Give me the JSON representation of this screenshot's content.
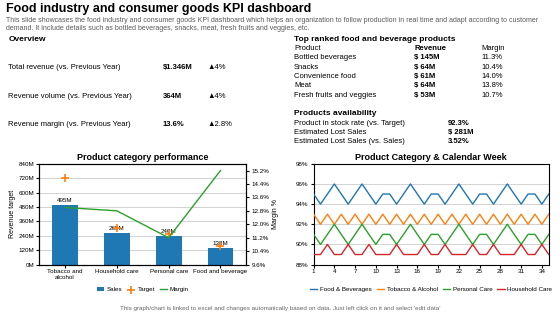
{
  "title": "Food industry and consumer goods KPI dashboard",
  "subtitle": "This slide showcases the food industry and consumer goods KPI dashboard which helps an organization to follow production in real time and adapt according to customer demand. It include details such as bottled beverages, snacks, meat, fresh fruits and veggies, etc.",
  "annotations": [
    [
      [
        "Overview"
      ],
      [
        "Total revenue (vs. Previous Year)",
        "$1.346M",
        "▲4%"
      ],
      [
        "Revenue volume (vs. Previous Year)",
        "364M",
        "▲4%"
      ],
      [
        "Revenue margin (vs. Previous Year)",
        "13.6%",
        "▲2.8%"
      ]
    ],
    [
      [
        "Top ranked food and beverage products"
      ],
      [
        "Product",
        "Revenue",
        "Margin"
      ],
      [
        "Bottled beverages",
        "$ 145M",
        "11.3%"
      ],
      [
        "Snacks",
        "$ 64M",
        "10.4%"
      ],
      [
        "Convenience food",
        "$ 61M",
        "14.0%"
      ],
      [
        "Meat",
        "$ 64M",
        "13.8%"
      ],
      [
        "Fresh fruits and veggies",
        "$ 53M",
        "10.7%"
      ]
    ],
    [
      [
        "Products availability"
      ],
      [
        "Product in stock rate (vs. Target)",
        "92.3%"
      ],
      [
        "Estimated Lost Sales",
        "$ 281M"
      ],
      [
        "Estimated Lost Sales (vs. Sales)",
        "3.52%"
      ]
    ],
    [
      [
        "This graph/chart is linked to excel and changes automatically based on data. Just left click on it and select 'edit data'"
      ]
    ]
  ],
  "chart_data": [
    {
      "type": "bar",
      "title": "Product category performance",
      "categories": [
        "Tobacco and\nalcohol",
        "Household care",
        "Personal care",
        "Food and beverage"
      ],
      "series": [
        {
          "name": "Sales",
          "type": "bar",
          "values": [
            495,
            265,
            240,
            138
          ],
          "value_labels": [
            "495M",
            "265M",
            "240M",
            "138M"
          ]
        },
        {
          "name": "Target",
          "type": "scatter",
          "marker": "plus",
          "values": [
            720,
            305,
            255,
            155
          ]
        },
        {
          "name": "Margin",
          "type": "line",
          "axis": "y2",
          "values": [
            13.0,
            12.8,
            11.2,
            15.2
          ]
        }
      ],
      "data_labels": true,
      "ylabel": "Revenue target",
      "y2label": "Margin %",
      "ylim": [
        0,
        840
      ],
      "yticks": [
        {
          "value": 0,
          "label": "0M"
        },
        {
          "value": 120,
          "label": "120M"
        },
        {
          "value": 240,
          "label": "240M"
        },
        {
          "value": 360,
          "label": "360M"
        },
        {
          "value": 480,
          "label": "480M"
        },
        {
          "value": 600,
          "label": "600M"
        },
        {
          "value": 720,
          "label": "720M"
        },
        {
          "value": 840,
          "label": "840M"
        }
      ],
      "y2lim": [
        9.6,
        15.6
      ],
      "y2ticks": [
        {
          "value": 9.6,
          "label": "9.6%"
        },
        {
          "value": 10.4,
          "label": "10.4%"
        },
        {
          "value": 11.2,
          "label": "11.2%"
        },
        {
          "value": 12.0,
          "label": "12.0%"
        },
        {
          "value": 12.8,
          "label": "12.8%"
        },
        {
          "value": 13.6,
          "label": "13.6%"
        },
        {
          "value": 14.4,
          "label": "14.4%"
        },
        {
          "value": 15.2,
          "label": "15.2%"
        }
      ],
      "grid": "y",
      "legend": "lower center"
    },
    {
      "type": "line",
      "title": "Product Category & Calendar Week",
      "x": [
        1,
        2,
        3,
        4,
        5,
        6,
        7,
        8,
        9,
        10,
        11,
        12,
        13,
        14,
        15,
        16,
        17,
        18,
        19,
        20,
        21,
        22,
        23,
        24,
        25,
        26,
        27,
        28,
        29,
        30,
        31,
        32,
        33,
        34,
        35
      ],
      "xlim": [
        1,
        35
      ],
      "xticks": [
        1,
        4,
        7,
        10,
        13,
        16,
        19,
        22,
        25,
        28,
        31,
        34
      ],
      "ylim": [
        88,
        98
      ],
      "yticks": [
        {
          "value": 88,
          "label": "88%"
        },
        {
          "value": 90,
          "label": "90%"
        },
        {
          "value": 92,
          "label": "92%"
        },
        {
          "value": 94,
          "label": "94%"
        },
        {
          "value": 96,
          "label": "96%"
        },
        {
          "value": 98,
          "label": "98%"
        }
      ],
      "series": [
        {
          "name": "Food & Beverages",
          "values": [
            95,
            94,
            95,
            96,
            95,
            94,
            95,
            96,
            95,
            94,
            95,
            95,
            94,
            95,
            96,
            95,
            94,
            95,
            95,
            94,
            95,
            96,
            95,
            94,
            95,
            95,
            94,
            95,
            96,
            95,
            94,
            95,
            95,
            94,
            95
          ]
        },
        {
          "name": "Tobacco & Alcohol",
          "values": [
            93,
            92,
            93,
            92,
            93,
            92,
            93,
            92,
            93,
            92,
            93,
            92,
            93,
            92,
            93,
            92,
            93,
            92,
            93,
            92,
            93,
            92,
            93,
            92,
            93,
            92,
            93,
            92,
            93,
            92,
            93,
            92,
            93,
            92,
            93
          ]
        },
        {
          "name": "Personal Care",
          "values": [
            91,
            90,
            91,
            92,
            91,
            90,
            91,
            92,
            91,
            90,
            91,
            91,
            90,
            91,
            92,
            91,
            90,
            91,
            91,
            90,
            91,
            92,
            91,
            90,
            91,
            91,
            90,
            91,
            92,
            91,
            90,
            91,
            91,
            90,
            91
          ]
        },
        {
          "name": "Household Care",
          "values": [
            89,
            89,
            90,
            89,
            89,
            90,
            89,
            89,
            90,
            89,
            89,
            89,
            90,
            89,
            89,
            89,
            90,
            89,
            89,
            90,
            89,
            89,
            89,
            90,
            89,
            89,
            90,
            89,
            89,
            89,
            90,
            89,
            89,
            90,
            89
          ]
        }
      ],
      "grid": "y",
      "legend": "lower center"
    }
  ]
}
